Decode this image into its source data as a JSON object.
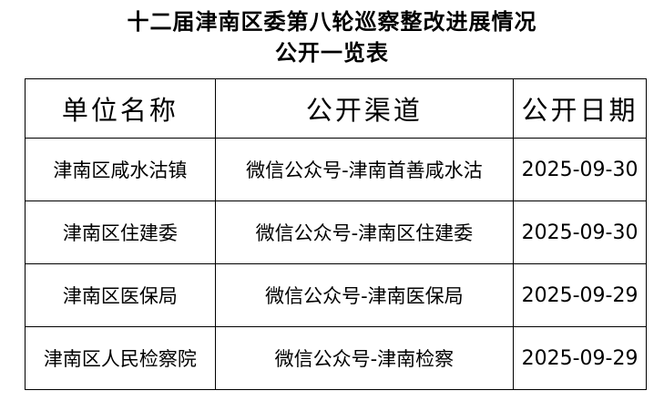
{
  "title": {
    "line1": "十二届津南区委第八轮巡察整改进展情况",
    "line2": "公开一览表"
  },
  "table": {
    "headers": [
      "单位名称",
      "公开渠道",
      "公开日期"
    ],
    "rows": [
      [
        "津南区咸水沽镇",
        "微信公众号-津南首善咸水沽",
        "2025-09-30"
      ],
      [
        "津南区住建委",
        "微信公众号-津南区住建委",
        "2025-09-30"
      ],
      [
        "津南区医保局",
        "微信公众号-津南医保局",
        "2025-09-29"
      ],
      [
        "津南区人民检察院",
        "微信公众号-津南检察",
        "2025-09-29"
      ]
    ]
  }
}
